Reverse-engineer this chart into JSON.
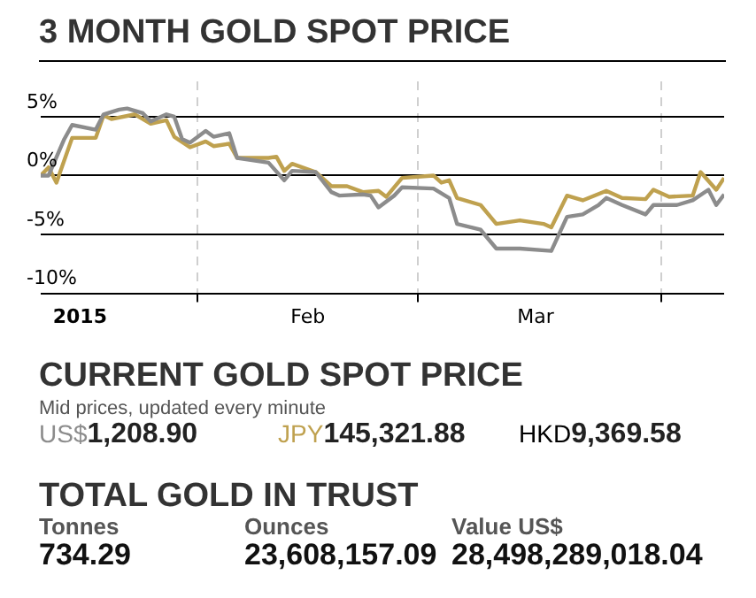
{
  "chart_data": [
    {
      "type": "line",
      "title": "3 MONTH GOLD SPOT PRICE",
      "xlim": [
        "2015-01-12",
        "2015-04-09"
      ],
      "ylim": [
        -10,
        8
      ],
      "xticks": [
        {
          "value": "2015-01-17",
          "label": "2015"
        },
        {
          "value": "2015-02-01",
          "label": null
        },
        {
          "value": "2015-02-15",
          "label": "Feb"
        },
        {
          "value": "2015-03-01",
          "label": null
        },
        {
          "value": "2015-03-16",
          "label": "Mar"
        },
        {
          "value": "2015-04-01",
          "label": null
        }
      ],
      "yticks": [
        {
          "value": 5,
          "label": "5%"
        },
        {
          "value": 0,
          "label": "0%"
        },
        {
          "value": -5,
          "label": "-5%"
        },
        {
          "value": -10,
          "label": "-10%"
        }
      ],
      "grid": true,
      "legend": false,
      "marker": "none",
      "line_style": "solid",
      "series": [
        {
          "color": "#8c8c8c",
          "x": [
            "2015-01-12",
            "2015-01-13",
            "2015-01-15",
            "2015-01-16",
            "2015-01-19",
            "2015-01-20",
            "2015-01-22",
            "2015-01-23",
            "2015-01-25",
            "2015-01-26",
            "2015-01-28",
            "2015-01-29",
            "2015-01-30",
            "2015-01-31",
            "2015-02-02",
            "2015-02-03",
            "2015-02-05",
            "2015-02-06",
            "2015-02-10",
            "2015-02-12",
            "2015-02-13",
            "2015-02-16",
            "2015-02-18",
            "2015-02-19",
            "2015-02-22",
            "2015-02-23",
            "2015-02-24",
            "2015-02-26",
            "2015-02-27",
            "2015-03-03",
            "2015-03-05",
            "2015-03-06",
            "2015-03-09",
            "2015-03-11",
            "2015-03-14",
            "2015-03-18",
            "2015-03-20",
            "2015-03-22",
            "2015-03-24",
            "2015-03-25",
            "2015-03-27",
            "2015-03-30",
            "2015-03-31",
            "2015-04-03",
            "2015-04-05",
            "2015-04-07",
            "2015-04-08",
            "2015-04-09"
          ],
          "values": [
            0,
            0,
            3.1,
            4.3,
            3.9,
            5.2,
            5.6,
            5.7,
            5.3,
            4.6,
            5.2,
            5.0,
            3.1,
            2.8,
            3.8,
            3.3,
            3.6,
            1.5,
            1.1,
            -0.4,
            0.4,
            0.3,
            -1.4,
            -1.7,
            -1.6,
            -1.7,
            -2.7,
            -1.7,
            -1.0,
            -1.1,
            -1.9,
            -4.1,
            -4.6,
            -6.2,
            -6.2,
            -6.4,
            -3.5,
            -3.3,
            -2.5,
            -1.9,
            -2.5,
            -3.3,
            -2.5,
            -2.5,
            -2.1,
            -1.2,
            -2.5,
            -1.6
          ]
        },
        {
          "color": "#bfa14f",
          "x": [
            "2015-01-12",
            "2015-01-13",
            "2015-01-14",
            "2015-01-16",
            "2015-01-19",
            "2015-01-20",
            "2015-01-21",
            "2015-01-24",
            "2015-01-26",
            "2015-01-28",
            "2015-01-29",
            "2015-01-31",
            "2015-02-02",
            "2015-02-03",
            "2015-02-05",
            "2015-02-06",
            "2015-02-10",
            "2015-02-11",
            "2015-02-12",
            "2015-02-13",
            "2015-02-16",
            "2015-02-18",
            "2015-02-20",
            "2015-02-22",
            "2015-02-24",
            "2015-02-25",
            "2015-02-27",
            "2015-03-03",
            "2015-03-04",
            "2015-03-05",
            "2015-03-06",
            "2015-03-09",
            "2015-03-11",
            "2015-03-14",
            "2015-03-17",
            "2015-03-18",
            "2015-03-20",
            "2015-03-22",
            "2015-03-25",
            "2015-03-27",
            "2015-03-30",
            "2015-03-31",
            "2015-04-02",
            "2015-04-05",
            "2015-04-06",
            "2015-04-08",
            "2015-04-09"
          ],
          "values": [
            0,
            0.7,
            -0.6,
            3.2,
            3.2,
            5.1,
            4.8,
            5.2,
            4.4,
            4.7,
            3.3,
            2.4,
            2.9,
            2.5,
            2.7,
            1.5,
            1.5,
            1.6,
            0.4,
            1.0,
            0.3,
            -0.9,
            -0.9,
            -1.4,
            -1.3,
            -1.8,
            -0.2,
            0,
            -0.6,
            -0.4,
            -1.9,
            -2.5,
            -4.1,
            -3.8,
            -4.1,
            -4.4,
            -1.7,
            -2.1,
            -1.3,
            -1.9,
            -2.0,
            -1.2,
            -1.8,
            -1.7,
            0.3,
            -1.2,
            -0.2
          ]
        }
      ]
    },
    {
      "type": "other",
      "title": "CURRENT GOLD SPOT PRICE",
      "subtitle": "Mid prices, updated every minute",
      "categories": [
        "US$",
        "JPY",
        "HKD"
      ],
      "colors": [
        "#8c8c8c",
        "#bfa14f",
        "#000000"
      ],
      "annotations": [
        "1,208.90",
        "145,321.88",
        "9,369.58"
      ]
    },
    {
      "type": "other",
      "title": "TOTAL GOLD IN TRUST",
      "categories": [
        "Tonnes",
        "Ounces",
        "Value US$"
      ],
      "annotations": [
        "734.29",
        "23,608,157.09",
        "28,498,289,018.04"
      ]
    }
  ]
}
